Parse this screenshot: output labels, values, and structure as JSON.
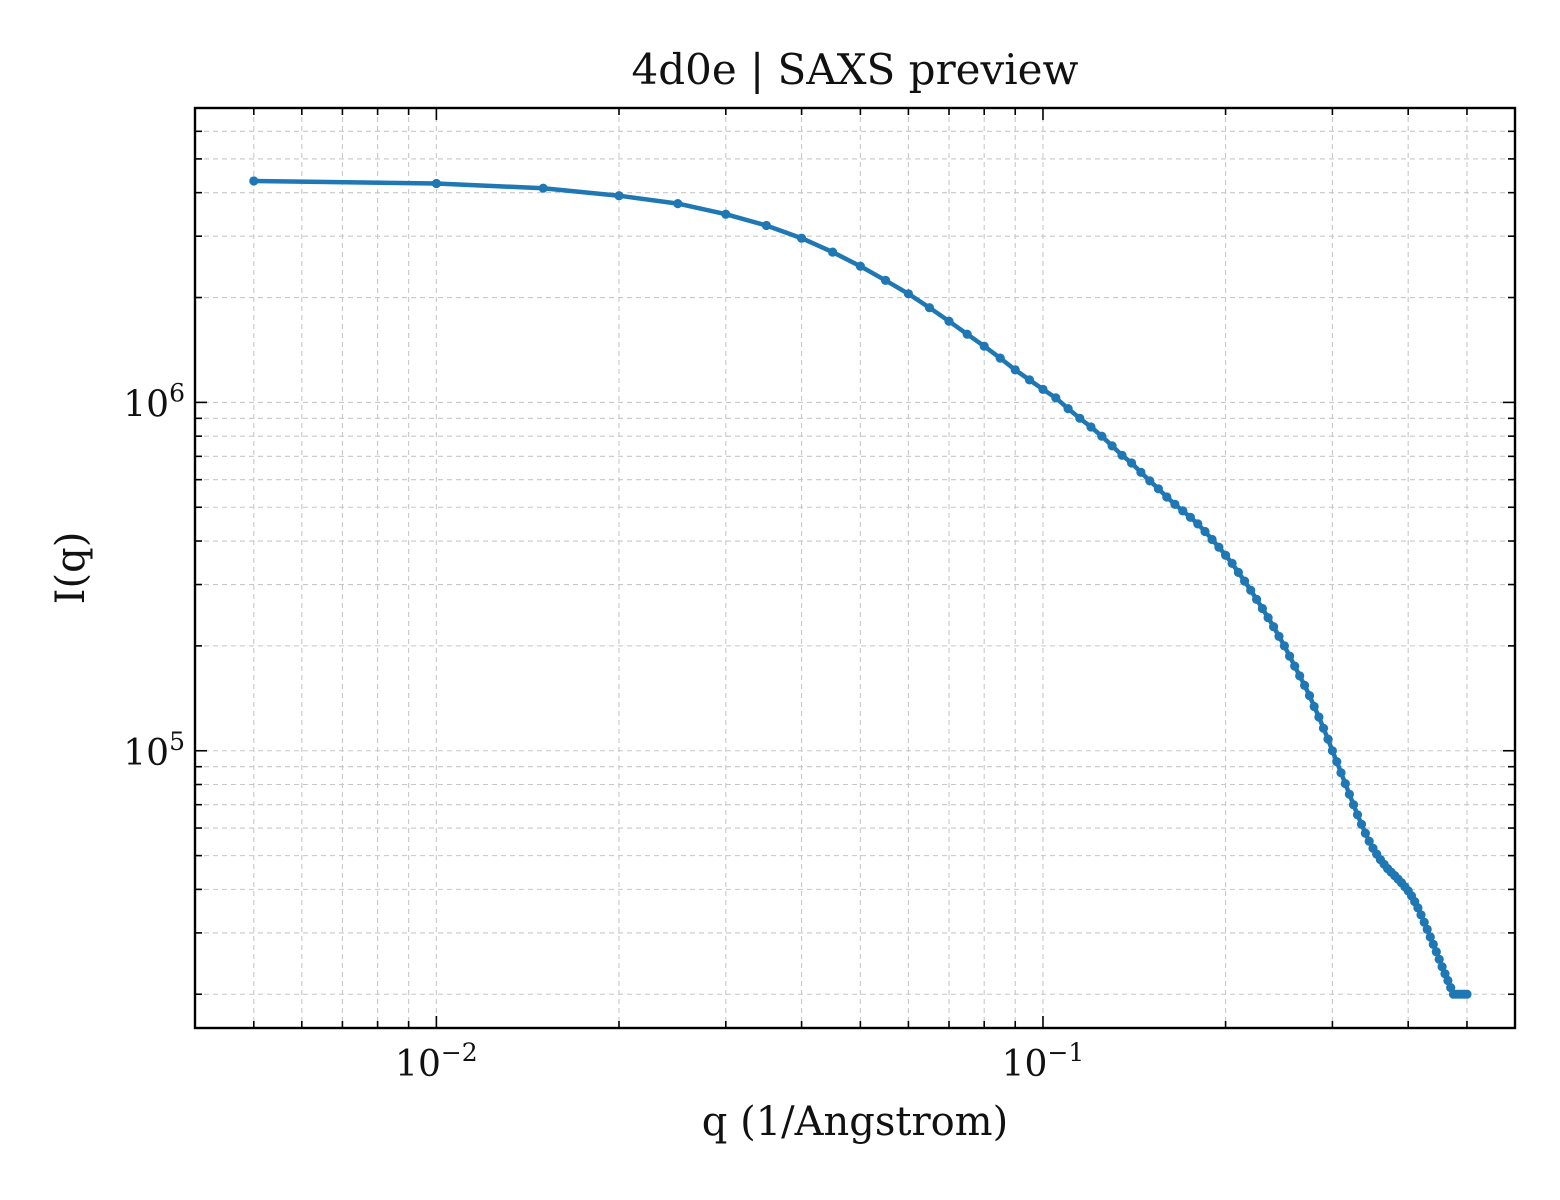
{
  "chart_data": {
    "type": "line",
    "title": "4d0e | SAXS preview",
    "xlabel": "q (1/Angstrom)",
    "ylabel": "I(q)",
    "xscale": "log",
    "yscale": "log",
    "xlim": [
      0.004,
      0.6
    ],
    "ylim": [
      16000,
      7000000
    ],
    "grid": true,
    "legend": "none",
    "line_color": "#1f77b4",
    "x_ticks": [
      {
        "value": 0.01,
        "base": "10",
        "exp": "−2"
      },
      {
        "value": 0.1,
        "base": "10",
        "exp": "−1"
      }
    ],
    "y_ticks": [
      {
        "value": 1000000,
        "base": "10",
        "exp": "6"
      },
      {
        "value": 100000,
        "base": "10",
        "exp": "5"
      }
    ],
    "series": [
      {
        "x": [
          0.005,
          0.01,
          0.015,
          0.02,
          0.025,
          0.03,
          0.035,
          0.04,
          0.045,
          0.05,
          0.055,
          0.06,
          0.065,
          0.07,
          0.075,
          0.08,
          0.085,
          0.09,
          0.095,
          0.1,
          0.105,
          0.11,
          0.115,
          0.12,
          0.125,
          0.13,
          0.135,
          0.14,
          0.145,
          0.15,
          0.155,
          0.16,
          0.165,
          0.17,
          0.175,
          0.18,
          0.185,
          0.19,
          0.195,
          0.2,
          0.205,
          0.21,
          0.215,
          0.22,
          0.225,
          0.23,
          0.235,
          0.24,
          0.245,
          0.25,
          0.255,
          0.26,
          0.265,
          0.27,
          0.275,
          0.28,
          0.285,
          0.29,
          0.295,
          0.3,
          0.305,
          0.31,
          0.315,
          0.32,
          0.325,
          0.33,
          0.335,
          0.34,
          0.345,
          0.35,
          0.355,
          0.36,
          0.365,
          0.37,
          0.375,
          0.38,
          0.385,
          0.39,
          0.395,
          0.4,
          0.405,
          0.41,
          0.415,
          0.42,
          0.425,
          0.43,
          0.435,
          0.44,
          0.445,
          0.45,
          0.455,
          0.46,
          0.465,
          0.47,
          0.475,
          0.48,
          0.485,
          0.49,
          0.495,
          0.5
        ],
        "y": [
          4320000,
          4250000,
          4120000,
          3920000,
          3720000,
          3470000,
          3220000,
          2960000,
          2700000,
          2460000,
          2240000,
          2050000,
          1870000,
          1710000,
          1570000,
          1450000,
          1340000,
          1240000,
          1160000,
          1090000,
          1030000,
          960000,
          900000,
          850000,
          800000,
          750000,
          705000,
          670000,
          630000,
          595000,
          565000,
          535000,
          510000,
          488000,
          468000,
          448000,
          426000,
          404000,
          384000,
          364000,
          345000,
          325000,
          307000,
          289000,
          272000,
          256000,
          241000,
          227000,
          213000,
          200000,
          187000,
          175000,
          164000,
          154000,
          144000,
          134000,
          125000,
          116000,
          108000,
          100000,
          93000,
          86500,
          80500,
          75000,
          70000,
          65500,
          61500,
          58000,
          55000,
          52500,
          50500,
          48700,
          47200,
          45900,
          44800,
          43800,
          42800,
          41800,
          40700,
          39600,
          38300,
          36900,
          35400,
          33800,
          32200,
          30700,
          29200,
          27800,
          26500,
          25200,
          24000,
          22900,
          21900,
          20900,
          20000,
          20000,
          20000,
          20000,
          20000,
          20000
        ]
      }
    ]
  }
}
